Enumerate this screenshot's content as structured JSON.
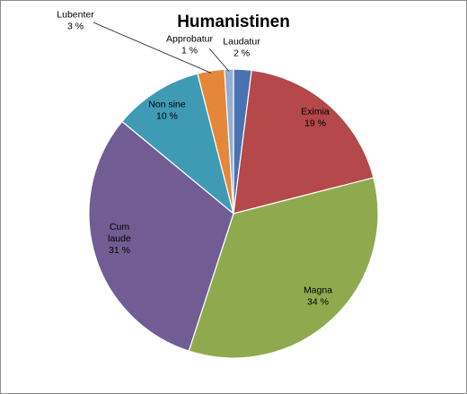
{
  "chart_data": {
    "type": "pie",
    "title": "Humanistinen",
    "slices": [
      {
        "name": "Laudatur",
        "value": 2,
        "label": "2 %",
        "color": "#4a72b0"
      },
      {
        "name": "Eximia",
        "value": 19,
        "label": "19 %",
        "color": "#b4484a"
      },
      {
        "name": "Magna",
        "value": 34,
        "label": "34 %",
        "color": "#8faa4e"
      },
      {
        "name": "Cum laude",
        "value": 31,
        "label": "31 %",
        "color": "#715c93"
      },
      {
        "name": "Non sine",
        "value": 10,
        "label": "10 %",
        "color": "#3e9bb3"
      },
      {
        "name": "Lubenter",
        "value": 3,
        "label": "3 %",
        "color": "#e5873a"
      },
      {
        "name": "Approbatur",
        "value": 1,
        "label": "1 %",
        "color": "#96acd4"
      }
    ]
  }
}
